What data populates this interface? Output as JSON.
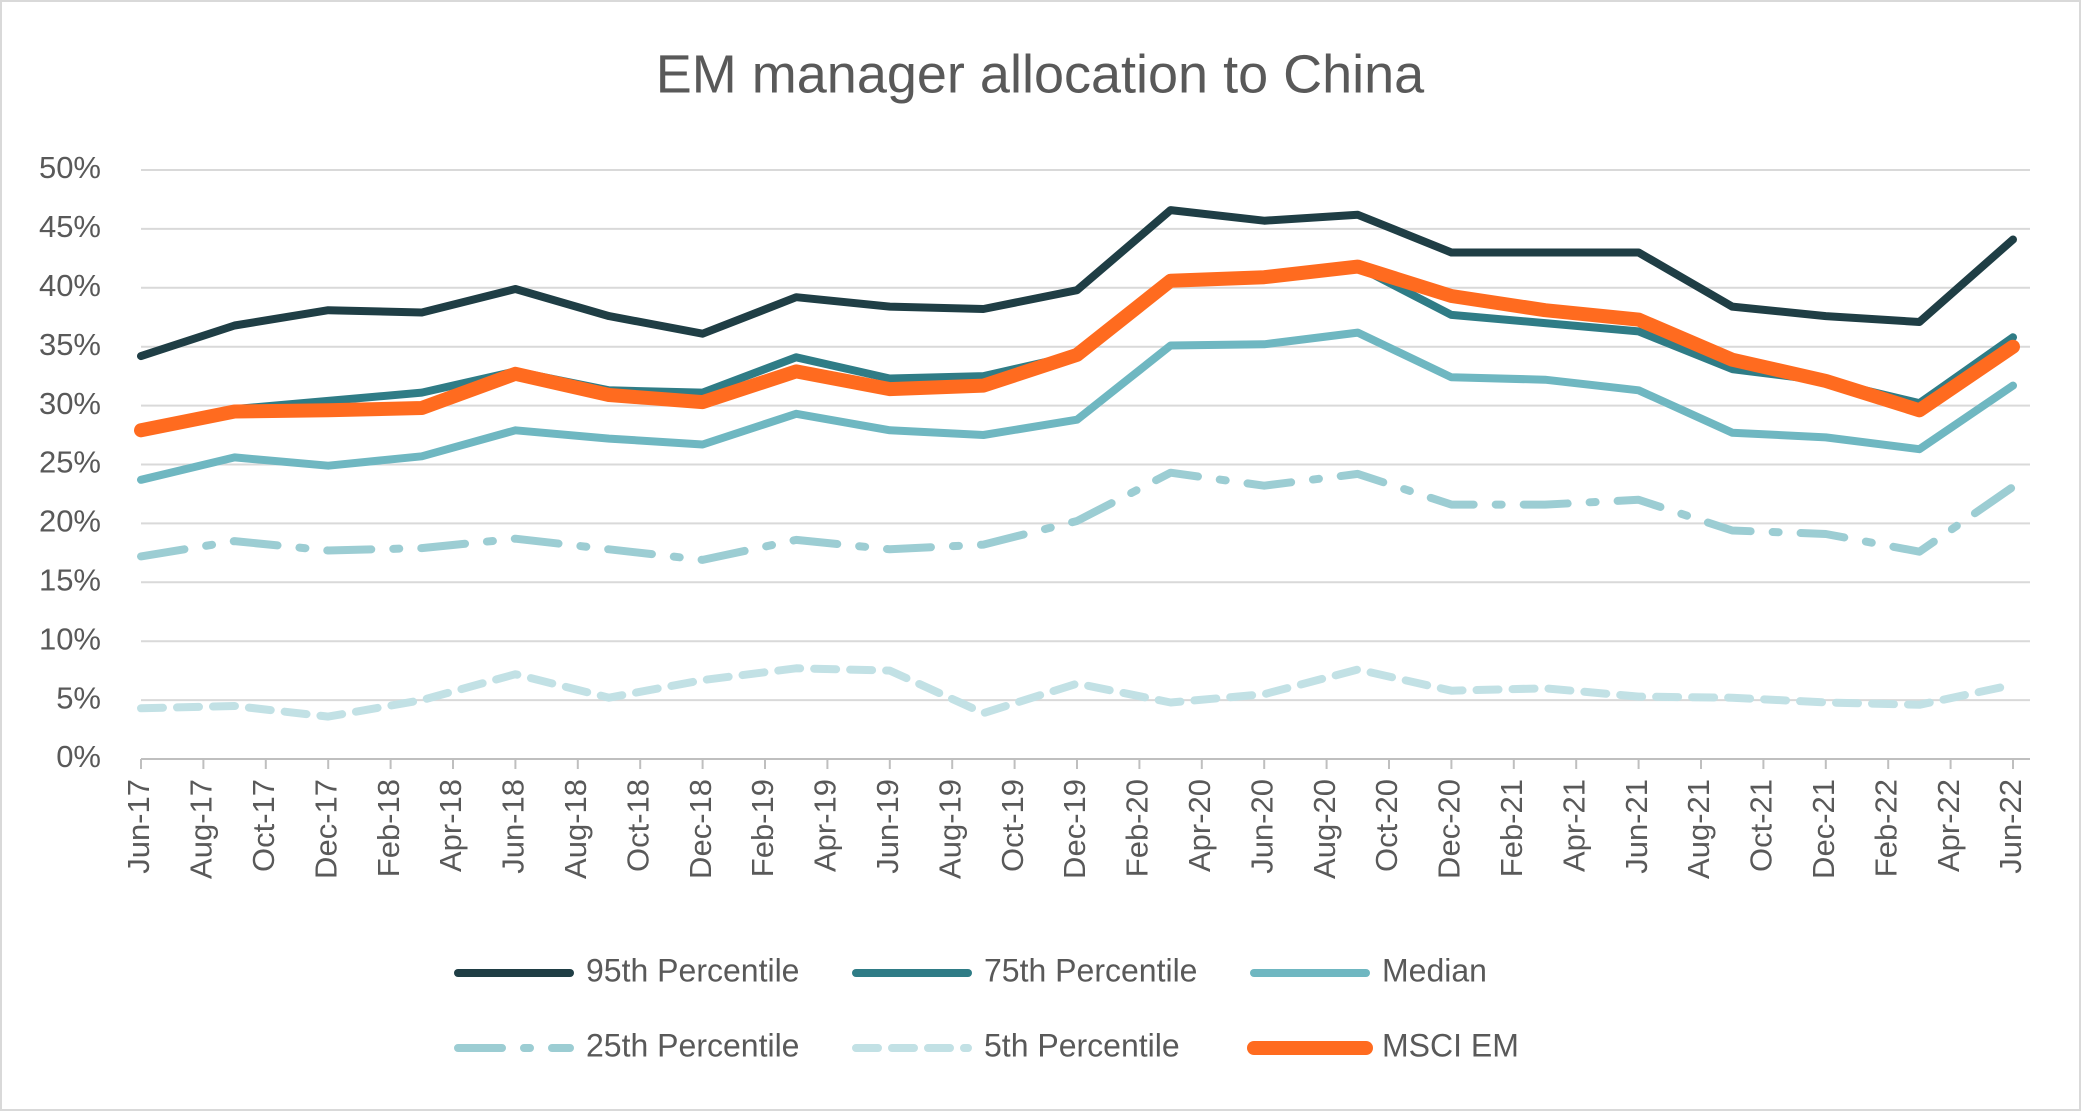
{
  "chart_data": {
    "type": "line",
    "title": "EM manager allocation to China",
    "x": [
      "Jun-17",
      "Sep-17",
      "Dec-17",
      "Mar-18",
      "Jun-18",
      "Sep-18",
      "Dec-18",
      "Mar-19",
      "Jun-19",
      "Sep-19",
      "Dec-19",
      "Mar-20",
      "Jun-20",
      "Sep-20",
      "Dec-20",
      "Mar-21",
      "Jun-21",
      "Sep-21",
      "Dec-21",
      "Mar-22",
      "Jun-22"
    ],
    "xticks": [
      "Jun-17",
      "Aug-17",
      "Oct-17",
      "Dec-17",
      "Feb-18",
      "Apr-18",
      "Jun-18",
      "Aug-18",
      "Oct-18",
      "Dec-18",
      "Feb-19",
      "Apr-19",
      "Jun-19",
      "Aug-19",
      "Oct-19",
      "Dec-19",
      "Feb-20",
      "Apr-20",
      "Jun-20",
      "Aug-20",
      "Oct-20",
      "Dec-20",
      "Feb-21",
      "Apr-21",
      "Jun-21",
      "Aug-21",
      "Oct-21",
      "Dec-21",
      "Feb-22",
      "Apr-22",
      "Jun-22"
    ],
    "ylim": [
      0,
      50
    ],
    "yticks": [
      {
        "value": 0,
        "label": "0%"
      },
      {
        "value": 5,
        "label": "5%"
      },
      {
        "value": 10,
        "label": "10%"
      },
      {
        "value": 15,
        "label": "15%"
      },
      {
        "value": 20,
        "label": "20%"
      },
      {
        "value": 25,
        "label": "25%"
      },
      {
        "value": 30,
        "label": "30%"
      },
      {
        "value": 35,
        "label": "35%"
      },
      {
        "value": 40,
        "label": "40%"
      },
      {
        "value": 45,
        "label": "45%"
      },
      {
        "value": 50,
        "label": "50%"
      }
    ],
    "grid": true,
    "legend": "bottom",
    "series": [
      {
        "name": "95th Percentile",
        "color": "#1f3e45",
        "dash": "solid",
        "width": 8,
        "values": [
          34.2,
          36.8,
          38.1,
          37.9,
          39.9,
          37.6,
          36.1,
          39.2,
          38.4,
          38.2,
          39.8,
          46.6,
          45.7,
          46.2,
          43.0,
          43.0,
          43.0,
          38.4,
          37.6,
          37.1,
          44.1
        ]
      },
      {
        "name": "75th Percentile",
        "color": "#2f7c86",
        "dash": "solid",
        "width": 8,
        "values": [
          28.1,
          29.7,
          30.4,
          31.1,
          32.9,
          31.3,
          31.1,
          34.1,
          32.3,
          32.5,
          34.3,
          40.8,
          41.0,
          41.8,
          37.7,
          37.0,
          36.3,
          33.1,
          32.1,
          30.2,
          35.8
        ]
      },
      {
        "name": "Median",
        "color": "#6fb7c1",
        "dash": "solid",
        "width": 8,
        "values": [
          23.7,
          25.6,
          24.9,
          25.7,
          27.9,
          27.2,
          26.7,
          29.3,
          27.9,
          27.5,
          28.8,
          35.1,
          35.2,
          36.2,
          32.4,
          32.2,
          31.3,
          27.7,
          27.3,
          26.3,
          31.7
        ]
      },
      {
        "name": "25th Percentile",
        "color": "#9ccdd3",
        "dash": "long-dash-dot",
        "width": 8,
        "values": [
          17.2,
          18.5,
          17.7,
          17.9,
          18.7,
          17.8,
          16.9,
          18.6,
          17.8,
          18.2,
          20.2,
          24.3,
          23.2,
          24.2,
          21.6,
          21.6,
          22.0,
          19.4,
          19.1,
          17.6,
          23.1
        ]
      },
      {
        "name": "5th Percentile",
        "color": "#c2e1e5",
        "dash": "dash",
        "width": 8,
        "values": [
          4.3,
          4.5,
          3.6,
          5.0,
          7.2,
          5.2,
          6.7,
          7.7,
          7.5,
          3.9,
          6.4,
          4.8,
          5.5,
          7.6,
          5.8,
          6.0,
          5.3,
          5.2,
          4.8,
          4.6,
          6.3
        ]
      },
      {
        "name": "MSCI EM",
        "color": "#ff6b1f",
        "dash": "solid",
        "width": 14,
        "values": [
          27.9,
          29.5,
          29.6,
          29.8,
          32.7,
          30.9,
          30.3,
          32.9,
          31.4,
          31.7,
          34.3,
          40.6,
          40.9,
          41.8,
          39.3,
          38.1,
          37.3,
          33.9,
          32.1,
          29.6,
          35.0
        ]
      }
    ]
  }
}
